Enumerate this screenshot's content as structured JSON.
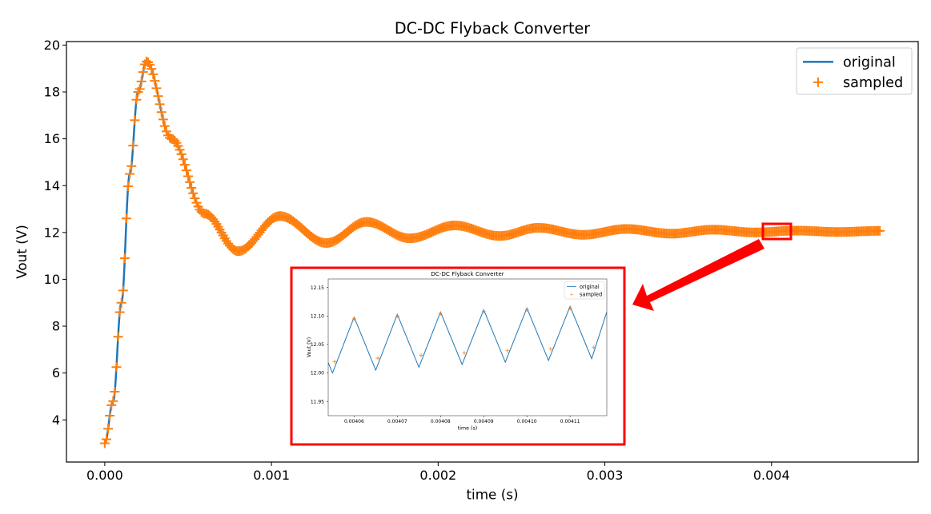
{
  "chart_data": [
    {
      "type": "line",
      "title": "DC-DC Flyback Converter",
      "xlabel": "time (s)",
      "ylabel": "Vout (V)",
      "xlim": [
        -0.00023,
        0.00488
      ],
      "ylim": [
        2.2,
        20.15
      ],
      "xticks": [
        "0.000",
        "0.001",
        "0.002",
        "0.003",
        "0.004"
      ],
      "xtick_values": [
        0,
        0.001,
        0.002,
        0.003,
        0.004
      ],
      "yticks": [
        "4",
        "6",
        "8",
        "10",
        "12",
        "14",
        "16",
        "18",
        "20"
      ],
      "ytick_values": [
        4,
        6,
        8,
        10,
        12,
        14,
        16,
        18,
        20
      ],
      "legend": "top-right",
      "grid": false,
      "series": [
        {
          "name": "original",
          "color": "#1f77b4",
          "style": "line",
          "x": [
            0,
            5e-05,
            0.0001,
            0.00015,
            0.0002,
            0.00025,
            0.0004,
            0.0006,
            0.0008,
            0.00105,
            0.00133,
            0.00157,
            0.00183,
            0.0021,
            0.00237,
            0.0026,
            0.00287,
            0.00313,
            0.0034,
            0.00365,
            0.0039,
            0.00415,
            0.0044,
            0.00465
          ],
          "y": [
            3,
            4.8,
            9,
            14.5,
            18,
            19.3,
            16,
            12.8,
            11.2,
            12.7,
            11.55,
            12.45,
            11.75,
            12.3,
            11.85,
            12.2,
            11.9,
            12.15,
            11.95,
            12.12,
            12.0,
            12.08,
            12.02,
            12.07
          ]
        },
        {
          "name": "sampled",
          "color": "#ff7f0e",
          "style": "marker +",
          "sample_step": 1e-05
        }
      ]
    },
    {
      "type": "line",
      "title": "DC-DC Flyback Converter",
      "xlabel": "time (s)",
      "ylabel": "Vout (V)",
      "xlim": [
        0.004054,
        0.0041185
      ],
      "ylim": [
        11.925,
        12.165
      ],
      "xticks": [
        "0.00406",
        "0.00407",
        "0.00408",
        "0.00409",
        "0.00410",
        "0.00411"
      ],
      "xtick_values": [
        0.00406,
        0.00407,
        0.00408,
        0.00409,
        0.0041,
        0.00411
      ],
      "yticks": [
        "11.95",
        "12.00",
        "12.05",
        "12.10",
        "12.15"
      ],
      "ytick_values": [
        11.95,
        12.0,
        12.05,
        12.1,
        12.15
      ],
      "legend": "top-right",
      "grid": false,
      "series": [
        {
          "name": "original",
          "color": "#1f77b4",
          "x": [
            0.004054,
            0.004055,
            0.00406,
            0.004065,
            0.00407,
            0.004075,
            0.00408,
            0.004085,
            0.00409,
            0.004095,
            0.0041,
            0.004105,
            0.00411,
            0.004115,
            0.0041185
          ],
          "y": [
            12.018,
            12.0,
            12.098,
            12.005,
            12.103,
            12.01,
            12.107,
            12.015,
            12.111,
            12.019,
            12.114,
            12.022,
            12.117,
            12.025,
            12.107
          ]
        },
        {
          "name": "sampled",
          "color": "#ff7f0e",
          "x": [
            0.0040555,
            0.00406,
            0.0040655,
            0.00407,
            0.0040755,
            0.00408,
            0.0040855,
            0.00409,
            0.0040955,
            0.0041,
            0.0041055,
            0.00411,
            0.0041155
          ],
          "y": [
            12.02,
            12.095,
            12.026,
            12.1,
            12.031,
            12.104,
            12.035,
            12.108,
            12.039,
            12.111,
            12.042,
            12.113,
            12.045
          ]
        }
      ]
    }
  ],
  "annotation": {
    "color": "#ff0000"
  }
}
